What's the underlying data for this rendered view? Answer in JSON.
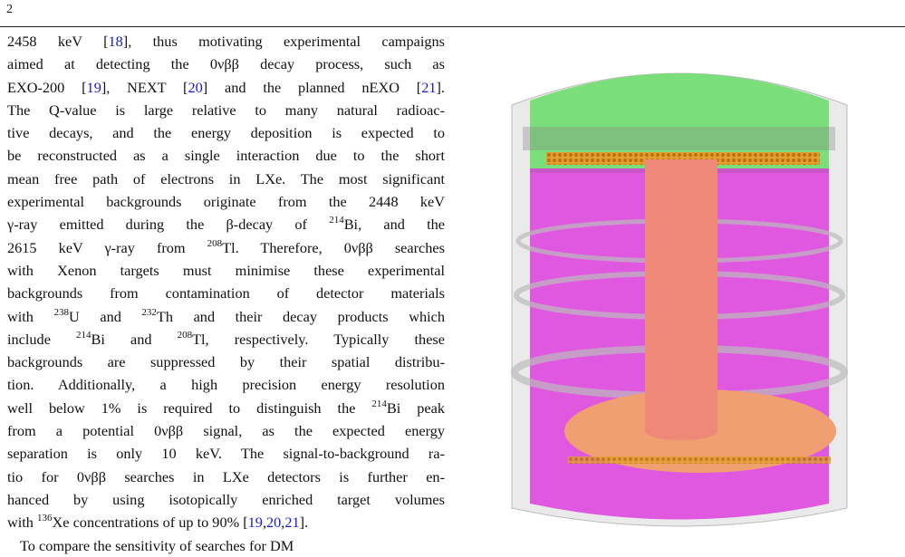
{
  "header": {
    "page_number": "2"
  },
  "paragraphs": [
    [
      [
        {
          "text": "2458 keV ["
        },
        {
          "text": "18",
          "kind": "ref"
        },
        {
          "text": "], thus motivating experimental campaigns"
        }
      ],
      [
        {
          "text": "aimed at detecting the 0νββ decay process, such as"
        }
      ],
      [
        {
          "text": "EXO-200 ["
        },
        {
          "text": "19",
          "kind": "ref"
        },
        {
          "text": "], NEXT ["
        },
        {
          "text": "20",
          "kind": "ref"
        },
        {
          "text": "] and the planned nEXO ["
        },
        {
          "text": "21",
          "kind": "ref"
        },
        {
          "text": "]."
        }
      ],
      [
        {
          "text": "The Q-value is large relative to many natural radioac-"
        }
      ],
      [
        {
          "text": "tive decays, and the energy deposition is expected to"
        }
      ],
      [
        {
          "text": "be reconstructed as a single interaction due to the short"
        }
      ],
      [
        {
          "text": "mean free path of electrons in LXe. The most significant"
        }
      ],
      [
        {
          "text": "experimental backgrounds originate from the 2448 keV"
        }
      ],
      [
        {
          "text": "γ-ray emitted during the β-decay of "
        },
        {
          "text": "214",
          "kind": "sup"
        },
        {
          "text": "Bi, and the"
        }
      ],
      [
        {
          "text": "2615 keV γ-ray from "
        },
        {
          "text": "208",
          "kind": "sup"
        },
        {
          "text": "Tl. Therefore, 0νββ searches"
        }
      ],
      [
        {
          "text": "with Xenon targets must minimise these experimental"
        }
      ],
      [
        {
          "text": "backgrounds from contamination of detector materials"
        }
      ],
      [
        {
          "text": "with "
        },
        {
          "text": "238",
          "kind": "sup"
        },
        {
          "text": "U and "
        },
        {
          "text": "232",
          "kind": "sup"
        },
        {
          "text": "Th and their decay products which"
        }
      ],
      [
        {
          "text": "include "
        },
        {
          "text": "214",
          "kind": "sup"
        },
        {
          "text": "Bi and "
        },
        {
          "text": "208",
          "kind": "sup"
        },
        {
          "text": "Tl, respectively. Typically these"
        }
      ],
      [
        {
          "text": "backgrounds are suppressed by their spatial distribu-"
        }
      ],
      [
        {
          "text": "tion. Additionally, a high precision energy resolution"
        }
      ],
      [
        {
          "text": "well below 1% is required to distinguish the "
        },
        {
          "text": "214",
          "kind": "sup"
        },
        {
          "text": "Bi peak"
        }
      ],
      [
        {
          "text": "from a potential 0νββ signal, as the expected energy"
        }
      ],
      [
        {
          "text": "separation is only 10 keV. The signal-to-background ra-"
        }
      ],
      [
        {
          "text": "tio for 0νββ searches in LXe detectors is further en-"
        }
      ],
      [
        {
          "text": "hanced by using isotopically enriched target volumes"
        }
      ],
      [
        {
          "text": "with "
        },
        {
          "text": "136",
          "kind": "sup"
        },
        {
          "text": "Xe concentrations of up to 90% ["
        },
        {
          "text": "19",
          "kind": "ref"
        },
        {
          "text": ","
        },
        {
          "text": "20",
          "kind": "ref"
        },
        {
          "text": ","
        },
        {
          "text": "21",
          "kind": "ref"
        },
        {
          "text": "]."
        }
      ]
    ],
    [
      [
        {
          "text": "To compare the sensitivity of searches for DM"
        }
      ]
    ]
  ]
}
